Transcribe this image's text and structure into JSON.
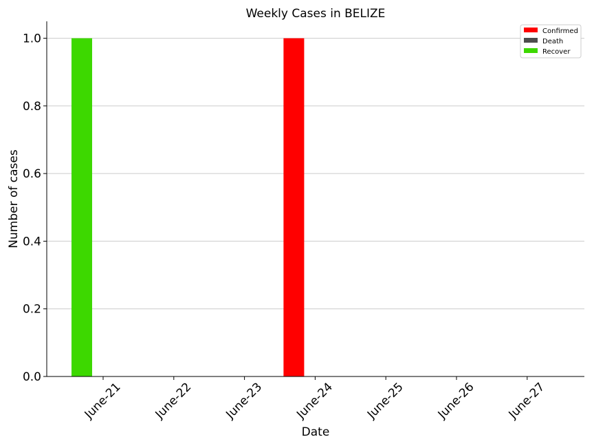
{
  "chart_data": {
    "type": "bar",
    "title": "Weekly Cases in BELIZE",
    "xlabel": "Date",
    "ylabel": "Number of cases",
    "categories": [
      "June-21",
      "June-22",
      "June-23",
      "June-24",
      "June-25",
      "June-26",
      "June-27"
    ],
    "series": [
      {
        "name": "Confirmed",
        "color": "#ff0000",
        "values": [
          0,
          0,
          0,
          1,
          0,
          0,
          0
        ]
      },
      {
        "name": "Death",
        "color": "#4d4d4d",
        "values": [
          0,
          0,
          0,
          0,
          0,
          0,
          0
        ]
      },
      {
        "name": "Recover",
        "color": "#3dd800",
        "values": [
          1,
          0,
          0,
          0,
          0,
          0,
          0
        ]
      }
    ],
    "ylim": [
      0,
      1.05
    ],
    "yticks": [
      "0.0",
      "0.2",
      "0.4",
      "0.6",
      "0.8",
      "1.0"
    ],
    "grid": "horizontal",
    "legend_position": "top-right"
  }
}
